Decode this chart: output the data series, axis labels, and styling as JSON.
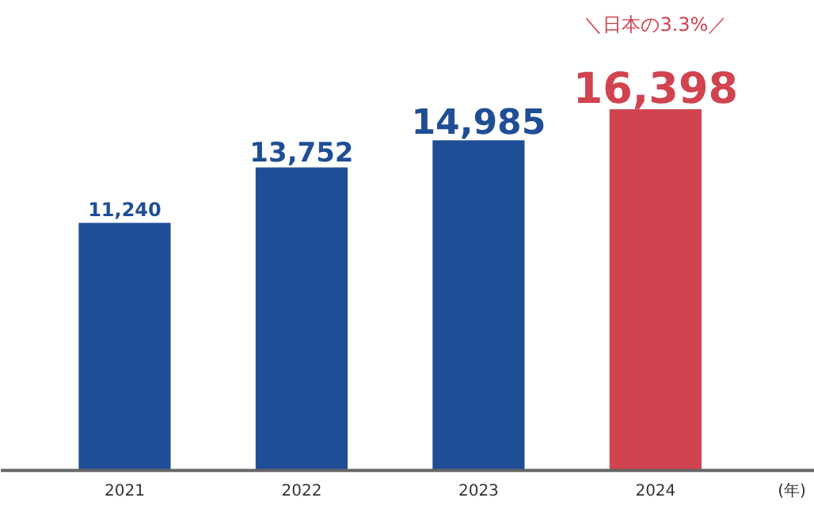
{
  "chart_data": {
    "type": "bar",
    "xlabel": "(年)",
    "categories": [
      "2021",
      "2022",
      "2023",
      "2024"
    ],
    "values": [
      11240,
      13752,
      14985,
      16398
    ],
    "colors": [
      "#1f4e96",
      "#1f4e96",
      "#1f4e96",
      "#d0434f"
    ],
    "value_labels": [
      "11,240",
      "13,752",
      "14,985",
      "16,398"
    ],
    "annotations": [
      "＼日本の3.3%／"
    ]
  }
}
